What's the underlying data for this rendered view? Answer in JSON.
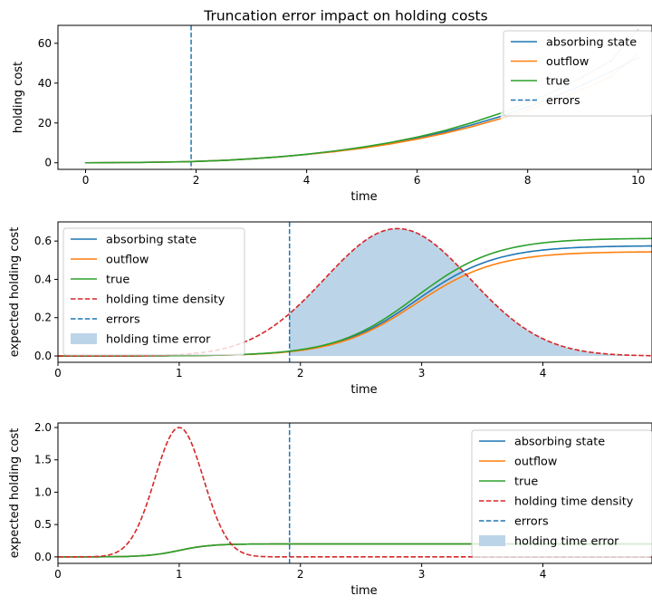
{
  "figure": {
    "title": "Truncation error impact on holding costs"
  },
  "colors": {
    "blue": "#1f77b4",
    "orange": "#ff7f0e",
    "green": "#2ca02c",
    "red": "#d62728",
    "fill": "#bcd4e8"
  },
  "chart_data": [
    {
      "type": "line",
      "title": "Truncation error impact on holding costs",
      "xlabel": "time",
      "ylabel": "holding cost",
      "xlim": [
        -0.5,
        10.25
      ],
      "ylim": [
        -3.3,
        69
      ],
      "xticks": [
        0,
        2,
        4,
        6,
        8,
        10
      ],
      "yticks": [
        0,
        20,
        40,
        60
      ],
      "grid": false,
      "legend_position": "top-right",
      "legend": [
        "absorbing state",
        "outflow",
        "true",
        "errors"
      ],
      "error_line_x": 1.91,
      "x": [
        0,
        0.5,
        1,
        1.5,
        1.91,
        2,
        2.5,
        3,
        3.5,
        4,
        4.5,
        5,
        5.5,
        6,
        6.5,
        7,
        7.5,
        8,
        8.5,
        9,
        9.5,
        10
      ],
      "series": [
        {
          "name": "absorbing state",
          "color": "#1f77b4",
          "values": [
            0.0,
            0.1,
            0.2,
            0.4,
            0.6,
            0.7,
            1.2,
            2.0,
            3.0,
            4.2,
            5.7,
            7.5,
            9.7,
            12.4,
            15.5,
            19.1,
            23.2,
            28.0,
            33.3,
            39.2,
            45.7,
            52.8
          ],
          "segment_opacity": [
            1,
            1,
            1,
            1,
            1,
            1,
            1,
            1,
            1,
            1,
            1,
            1,
            1,
            1,
            1,
            1,
            0.25,
            0.25,
            0.25,
            0.25,
            0.25,
            0.25
          ]
        },
        {
          "name": "outflow",
          "color": "#ff7f0e",
          "values": [
            0.0,
            0.1,
            0.2,
            0.4,
            0.6,
            0.7,
            1.2,
            2.0,
            3.0,
            4.2,
            5.6,
            7.3,
            9.4,
            11.9,
            14.8,
            18.2,
            22.1,
            26.5,
            31.5,
            37.0,
            43.0,
            55.0
          ],
          "segment_opacity": [
            1,
            1,
            1,
            1,
            1,
            1,
            1,
            1,
            1,
            1,
            1,
            1,
            1,
            1,
            1,
            1,
            0.25,
            0.25,
            0.25,
            0.25,
            0.25,
            0.25
          ]
        },
        {
          "name": "true",
          "color": "#2ca02c",
          "values": [
            0.0,
            0.1,
            0.2,
            0.4,
            0.6,
            0.7,
            1.2,
            2.0,
            3.0,
            4.3,
            5.9,
            7.8,
            10.1,
            12.9,
            16.2,
            20.2,
            24.8,
            30.1,
            36.2,
            43.2,
            51.0,
            67.0
          ],
          "segment_opacity": [
            1,
            1,
            1,
            1,
            1,
            1,
            1,
            1,
            1,
            1,
            1,
            1,
            1,
            1,
            1,
            1,
            0.25,
            0.25,
            0.25,
            0.25,
            0.25,
            0.25
          ]
        }
      ]
    },
    {
      "type": "line",
      "xlabel": "time",
      "ylabel": "expected holding cost",
      "xlim": [
        0,
        4.9
      ],
      "ylim": [
        -0.033,
        0.7
      ],
      "xticks": [
        0,
        1,
        2,
        3,
        4
      ],
      "yticks": [
        0.0,
        0.2,
        0.4,
        0.6
      ],
      "grid": false,
      "legend_position": "top-left",
      "legend": [
        "absorbing state",
        "outflow",
        "true",
        "holding time density",
        "errors",
        "holding time error"
      ],
      "error_line_x": 1.91,
      "density": {
        "mean": 2.8,
        "sd": 0.6,
        "peak": 0.665
      },
      "cost_curves": [
        {
          "name": "absorbing state",
          "color": "#1f77b4",
          "final": 0.576
        },
        {
          "name": "outflow",
          "color": "#ff7f0e",
          "final": 0.545
        },
        {
          "name": "true",
          "color": "#2ca02c",
          "final": 0.615
        }
      ],
      "shaded_region": {
        "from": 1.91,
        "to": 4.9,
        "label": "holding time error"
      }
    },
    {
      "type": "line",
      "xlabel": "time",
      "ylabel": "expected holding cost",
      "xlim": [
        0,
        4.9
      ],
      "ylim": [
        -0.1,
        2.07
      ],
      "xticks": [
        0,
        1,
        2,
        3,
        4
      ],
      "yticks": [
        0.0,
        0.5,
        1.0,
        1.5,
        2.0
      ],
      "grid": false,
      "legend_position": "top-right",
      "legend": [
        "absorbing state",
        "outflow",
        "true",
        "holding time density",
        "errors",
        "holding time error"
      ],
      "error_line_x": 1.91,
      "density": {
        "mean": 1.0,
        "sd": 0.2,
        "peak": 2.0
      },
      "cost_curves": [
        {
          "name": "absorbing state",
          "color": "#1f77b4",
          "final": 0.2
        },
        {
          "name": "outflow",
          "color": "#ff7f0e",
          "final": 0.2
        },
        {
          "name": "true",
          "color": "#2ca02c",
          "final": 0.2
        }
      ]
    }
  ]
}
